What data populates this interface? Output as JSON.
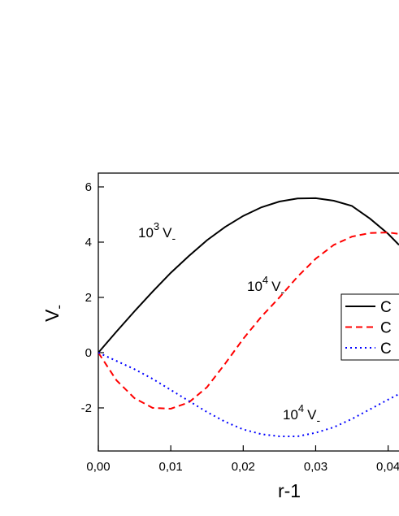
{
  "chart_data": {
    "type": "line",
    "x_label": "r-1",
    "y_label": {
      "text": "V",
      "sub": "-"
    },
    "x": [
      0,
      0.0025,
      0.005,
      0.0075,
      0.01,
      0.0125,
      0.015,
      0.0175,
      0.02,
      0.0225,
      0.025,
      0.0275,
      0.03,
      0.0325,
      0.035,
      0.0375,
      0.04,
      0.0415
    ],
    "series": [
      {
        "name": "C",
        "color": "#000000",
        "dash": "solid",
        "values": [
          0,
          0.76,
          1.5,
          2.21,
          2.89,
          3.5,
          4.07,
          4.55,
          4.95,
          5.26,
          5.47,
          5.58,
          5.59,
          5.5,
          5.31,
          4.85,
          4.3,
          3.9
        ]
      },
      {
        "name": "C",
        "color": "#ff0000",
        "dash": "dashed",
        "values": [
          0,
          -1.0,
          -1.65,
          -2.0,
          -2.03,
          -1.8,
          -1.25,
          -0.4,
          0.5,
          1.3,
          2.0,
          2.75,
          3.4,
          3.9,
          4.2,
          4.33,
          4.35,
          4.3
        ]
      },
      {
        "name": "C",
        "color": "#0000ff",
        "dash": "dotted",
        "values": [
          0,
          -0.3,
          -0.6,
          -0.95,
          -1.35,
          -1.75,
          -2.15,
          -2.5,
          -2.78,
          -2.95,
          -3.03,
          -3.03,
          -2.9,
          -2.7,
          -2.4,
          -2.05,
          -1.7,
          -1.5
        ]
      }
    ],
    "annotations": [
      {
        "base": "10",
        "exp": "3",
        "text": "V",
        "sub": "-"
      },
      {
        "base": "10",
        "exp": "4",
        "text": "V",
        "sub": "-"
      },
      {
        "base": "10",
        "exp": "4",
        "text": "V",
        "sub": "-"
      }
    ],
    "xlim": [
      0,
      0.0415
    ],
    "ylim": [
      -3.56,
      6.5
    ],
    "xticks": [
      {
        "value": 0,
        "label": "0,00"
      },
      {
        "value": 0.01,
        "label": "0,01"
      },
      {
        "value": 0.02,
        "label": "0,02"
      },
      {
        "value": 0.03,
        "label": "0,03"
      },
      {
        "value": 0.04,
        "label": "0,04"
      }
    ],
    "yticks": [
      -2,
      0,
      2,
      4,
      6
    ],
    "grid": false,
    "legend": "right"
  }
}
